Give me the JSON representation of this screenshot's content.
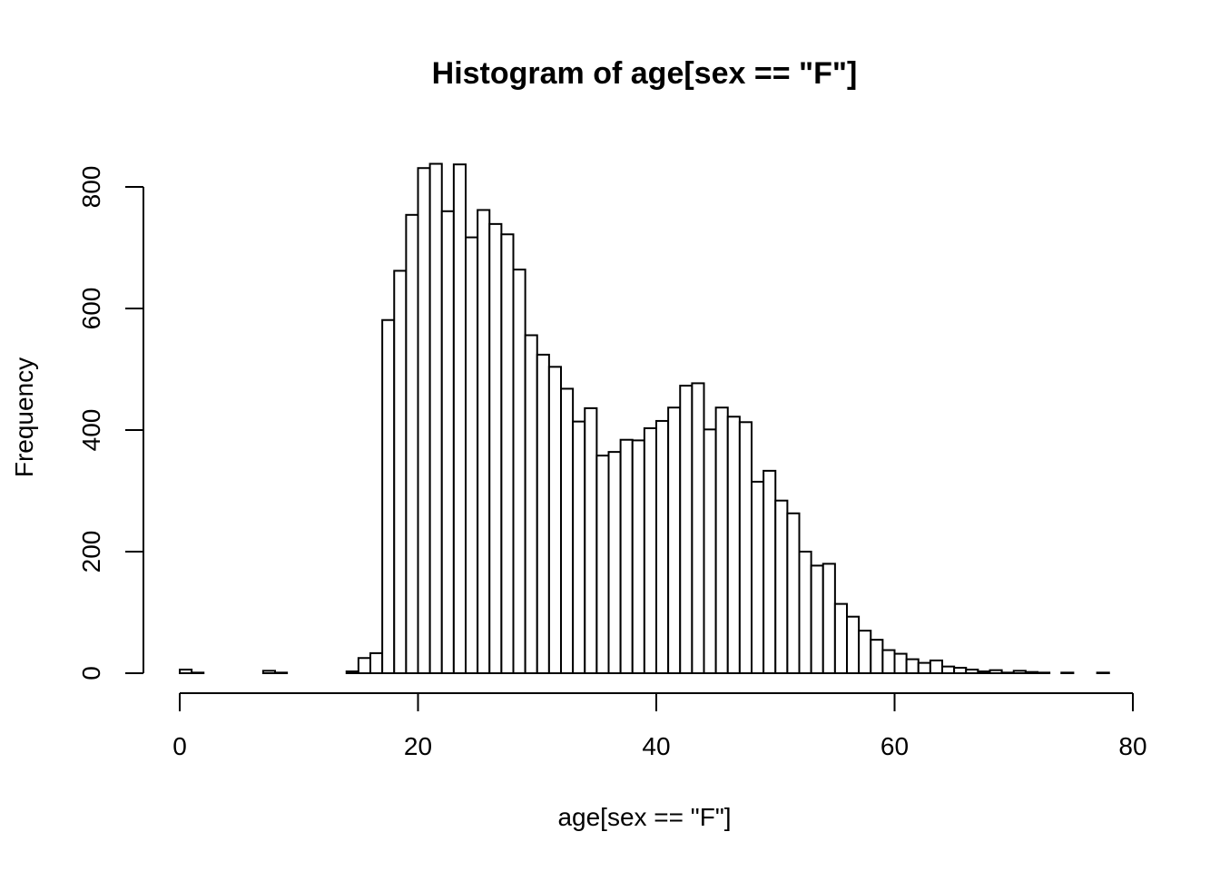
{
  "chart_data": {
    "type": "bar",
    "title": "Histogram of age[sex == \"F\"]",
    "xlabel": "age[sex == \"F\"]",
    "ylabel": "Frequency",
    "xlim": [
      0,
      80
    ],
    "ylim": [
      0,
      800
    ],
    "x_ticks": [
      0,
      20,
      40,
      60,
      80
    ],
    "y_ticks": [
      0,
      200,
      400,
      600,
      800
    ],
    "bin_width": 1,
    "bin_start": 0,
    "values": [
      6,
      1,
      0,
      0,
      0,
      0,
      0,
      4,
      1,
      0,
      0,
      0,
      0,
      0,
      3,
      25,
      33,
      581,
      662,
      754,
      831,
      838,
      760,
      837,
      717,
      762,
      739,
      722,
      664,
      556,
      524,
      504,
      468,
      414,
      436,
      358,
      364,
      384,
      383,
      403,
      415,
      437,
      473,
      477,
      401,
      437,
      422,
      413,
      315,
      333,
      284,
      263,
      200,
      177,
      180,
      114,
      93,
      70,
      55,
      38,
      32,
      23,
      17,
      21,
      11,
      9,
      6,
      3,
      5,
      1,
      4,
      2,
      1,
      0,
      1,
      0,
      0,
      1
    ]
  }
}
